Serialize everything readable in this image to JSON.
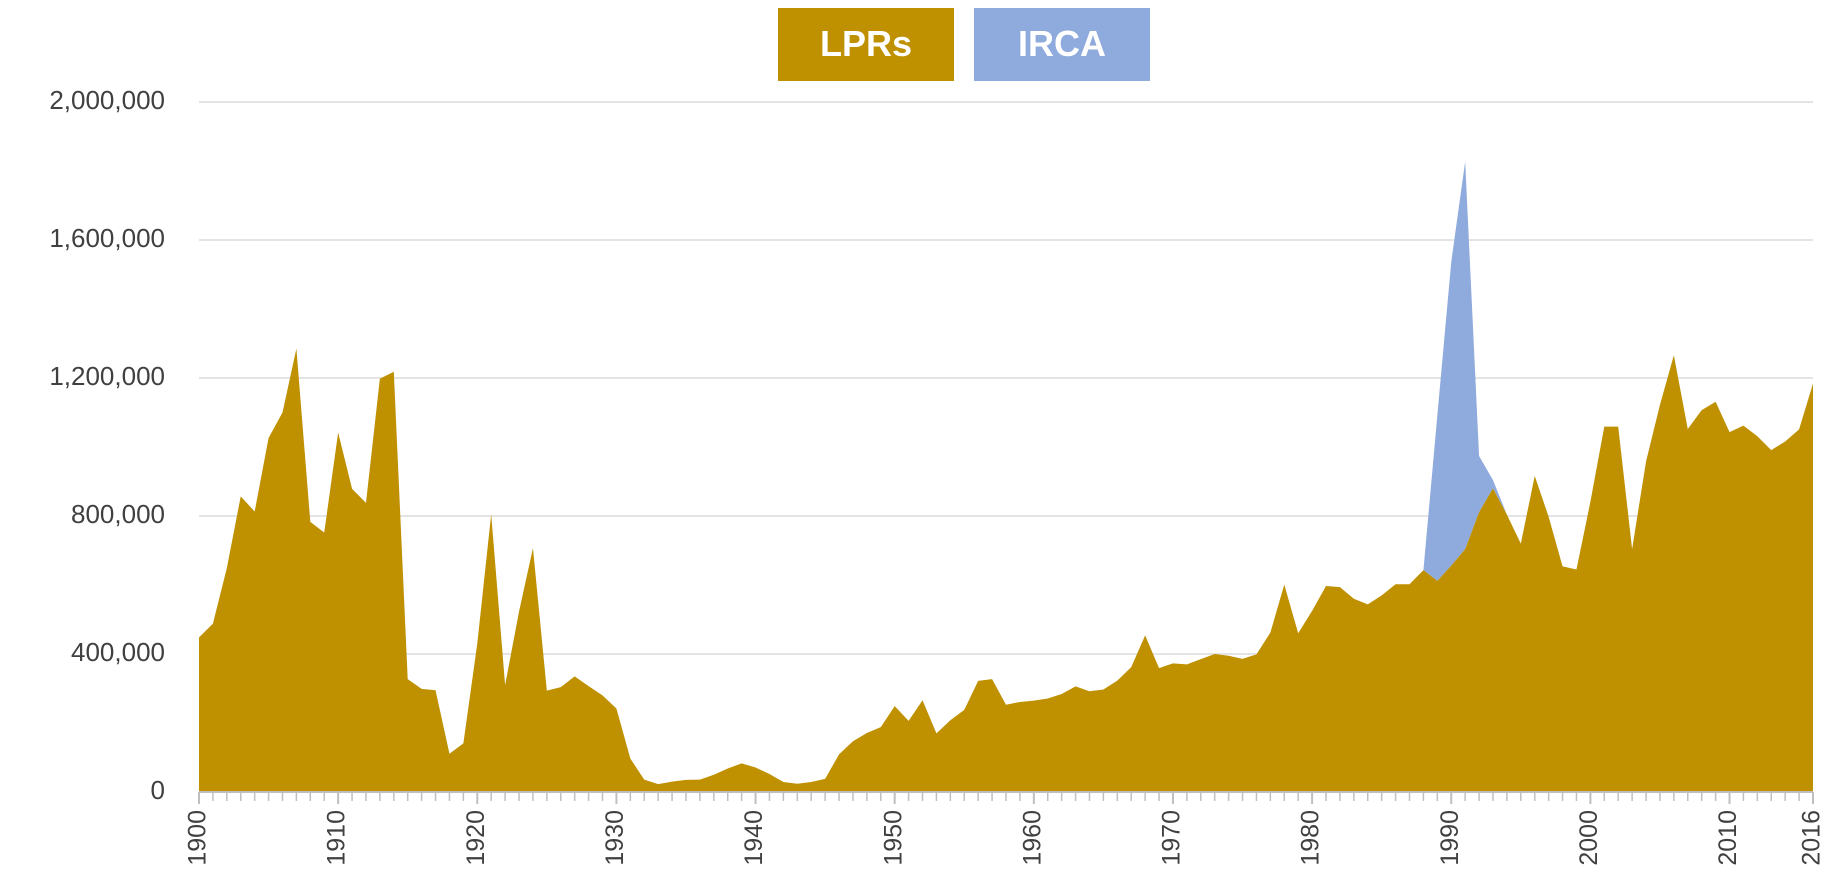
{
  "chart_data": {
    "type": "stacked_area",
    "x": [
      1900,
      1901,
      1902,
      1903,
      1904,
      1905,
      1906,
      1907,
      1908,
      1909,
      1910,
      1911,
      1912,
      1913,
      1914,
      1915,
      1916,
      1917,
      1918,
      1919,
      1920,
      1921,
      1922,
      1923,
      1924,
      1925,
      1926,
      1927,
      1928,
      1929,
      1930,
      1931,
      1932,
      1933,
      1934,
      1935,
      1936,
      1937,
      1938,
      1939,
      1940,
      1941,
      1942,
      1943,
      1944,
      1945,
      1946,
      1947,
      1948,
      1949,
      1950,
      1951,
      1952,
      1953,
      1954,
      1955,
      1956,
      1957,
      1958,
      1959,
      1960,
      1961,
      1962,
      1963,
      1964,
      1965,
      1966,
      1967,
      1968,
      1969,
      1970,
      1971,
      1972,
      1973,
      1974,
      1975,
      1976,
      1977,
      1978,
      1979,
      1980,
      1981,
      1982,
      1983,
      1984,
      1985,
      1986,
      1987,
      1988,
      1989,
      1990,
      1991,
      1992,
      1993,
      1994,
      1995,
      1996,
      1997,
      1998,
      1999,
      2000,
      2001,
      2002,
      2003,
      2004,
      2005,
      2006,
      2007,
      2008,
      2009,
      2010,
      2011,
      2012,
      2013,
      2014,
      2015,
      2016
    ],
    "series": [
      {
        "name": "LPRs",
        "color": "#bf9000",
        "values": [
          448000,
          488000,
          649000,
          857000,
          813000,
          1026000,
          1100000,
          1285000,
          783000,
          752000,
          1042000,
          879000,
          838000,
          1198000,
          1218000,
          327000,
          299000,
          295000,
          111000,
          141000,
          430000,
          805000,
          310000,
          523000,
          707000,
          294000,
          304000,
          335000,
          307000,
          280000,
          242000,
          97000,
          36000,
          23000,
          30000,
          35000,
          36000,
          50000,
          68000,
          83000,
          71000,
          52000,
          29000,
          24000,
          29000,
          38000,
          109000,
          147000,
          171000,
          188000,
          249000,
          206000,
          266000,
          170000,
          208000,
          238000,
          322000,
          327000,
          253000,
          261000,
          265000,
          271000,
          284000,
          306000,
          292000,
          297000,
          323000,
          362000,
          454000,
          359000,
          373000,
          370000,
          385000,
          400000,
          395000,
          386000,
          399000,
          462000,
          601000,
          460000,
          525000,
          597000,
          594000,
          560000,
          544000,
          570000,
          602000,
          602000,
          643000,
          612000,
          656000,
          704000,
          811000,
          880000,
          804000,
          720000,
          916000,
          798000,
          654000,
          645000,
          841000,
          1059000,
          1059000,
          704000,
          958000,
          1122000,
          1266000,
          1052000,
          1107000,
          1131000,
          1043000,
          1062000,
          1031000,
          991000,
          1016000,
          1051000,
          1184000
        ]
      },
      {
        "name": "IRCA",
        "color": "#8faadc",
        "values": [
          0,
          0,
          0,
          0,
          0,
          0,
          0,
          0,
          0,
          0,
          0,
          0,
          0,
          0,
          0,
          0,
          0,
          0,
          0,
          0,
          0,
          0,
          0,
          0,
          0,
          0,
          0,
          0,
          0,
          0,
          0,
          0,
          0,
          0,
          0,
          0,
          0,
          0,
          0,
          0,
          0,
          0,
          0,
          0,
          0,
          0,
          0,
          0,
          0,
          0,
          0,
          0,
          0,
          0,
          0,
          0,
          0,
          0,
          0,
          0,
          0,
          0,
          0,
          0,
          0,
          0,
          0,
          0,
          0,
          0,
          0,
          0,
          0,
          0,
          0,
          0,
          0,
          0,
          0,
          0,
          0,
          0,
          0,
          0,
          0,
          0,
          0,
          0,
          0,
          479000,
          880000,
          1123000,
          163000,
          24000,
          0,
          0,
          0,
          0,
          0,
          0,
          0,
          0,
          0,
          0,
          0,
          0,
          0,
          0,
          0,
          0,
          0,
          0,
          0,
          0,
          0,
          0,
          0
        ]
      }
    ],
    "xlim": [
      1900,
      2016
    ],
    "xticks": [
      1900,
      1910,
      1920,
      1930,
      1940,
      1950,
      1960,
      1970,
      1980,
      1990,
      2000,
      2010,
      2016
    ],
    "ylim": [
      0,
      2000000
    ],
    "yticks": [
      0,
      {
        "value": 400000,
        "label": "400,000"
      },
      {
        "value": 800000,
        "label": "800,000"
      },
      {
        "value": 1200000,
        "label": "1,200,000"
      },
      {
        "value": 1600000,
        "label": "1,600,000"
      },
      {
        "value": 2000000,
        "label": "2,000,000"
      }
    ],
    "grid": true
  }
}
